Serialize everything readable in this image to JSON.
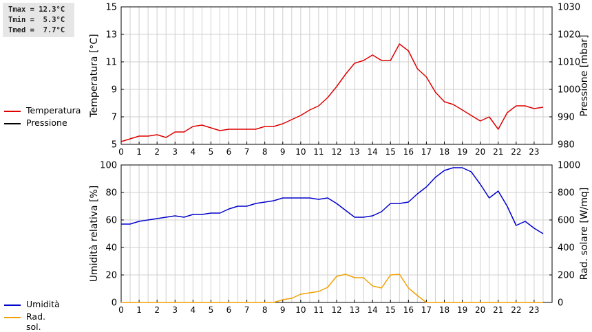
{
  "stats": {
    "lines": [
      "Tmax = 12.3°C",
      "Tmin =  5.3°C",
      "Tmed =  7.7°C"
    ]
  },
  "legend_top": [
    {
      "label": "Temperatura",
      "color": "#dd0000"
    },
    {
      "label": "Pressione",
      "color": "#000000"
    }
  ],
  "legend_bottom": [
    {
      "label": "Umidità",
      "color": "#0000cc"
    },
    {
      "label": "Rad. sol.",
      "color": "#f0a000"
    }
  ],
  "chart_data": [
    {
      "type": "line",
      "x_ticks": [
        0,
        1,
        2,
        3,
        4,
        5,
        6,
        7,
        8,
        9,
        10,
        11,
        12,
        13,
        14,
        15,
        16,
        17,
        18,
        19,
        20,
        21,
        22,
        23
      ],
      "xlim": [
        0,
        24
      ],
      "ylabel": "Temperatura [°C]",
      "y2label": "Pressione [mbar]",
      "ylim": [
        5,
        15
      ],
      "y2lim": [
        980,
        1030
      ],
      "y_ticks": [
        5,
        7,
        9,
        11,
        13,
        15
      ],
      "y2_ticks": [
        980,
        990,
        1000,
        1010,
        1020,
        1030
      ],
      "grid": true,
      "series": [
        {
          "name": "Temperatura",
          "color": "#dd0000",
          "axis": "left",
          "x": [
            0,
            0.5,
            1,
            1.5,
            2,
            2.5,
            3,
            3.5,
            4,
            4.5,
            5,
            5.5,
            6,
            6.5,
            7,
            7.5,
            8,
            8.5,
            9,
            9.5,
            10,
            10.5,
            11,
            11.5,
            12,
            12.5,
            13,
            13.5,
            14,
            14.5,
            15,
            15.5,
            16,
            16.5,
            17,
            17.5,
            18,
            18.5,
            19,
            19.5,
            20,
            20.5,
            21,
            21.5,
            22,
            22.5,
            23,
            23.5
          ],
          "y": [
            5.2,
            5.4,
            5.6,
            5.6,
            5.7,
            5.5,
            5.9,
            5.9,
            6.3,
            6.4,
            6.2,
            6.0,
            6.1,
            6.1,
            6.1,
            6.1,
            6.3,
            6.3,
            6.5,
            6.8,
            7.1,
            7.5,
            7.8,
            8.4,
            9.2,
            10.1,
            10.9,
            11.1,
            11.5,
            11.1,
            11.1,
            12.3,
            11.8,
            10.5,
            9.9,
            8.8,
            8.1,
            7.9,
            7.5,
            7.1,
            6.7,
            7.0,
            6.1,
            7.3,
            7.8,
            7.8,
            7.6,
            7.7
          ]
        },
        {
          "name": "Pressione",
          "color": "#000000",
          "axis": "right",
          "x": [],
          "y": []
        }
      ]
    },
    {
      "type": "line",
      "x_ticks": [
        0,
        1,
        2,
        3,
        4,
        5,
        6,
        7,
        8,
        9,
        10,
        11,
        12,
        13,
        14,
        15,
        16,
        17,
        18,
        19,
        20,
        21,
        22,
        23
      ],
      "xlim": [
        0,
        24
      ],
      "ylabel": "Umidità relativa [%]",
      "y2label": "Rad. solare [W/mq]",
      "ylim": [
        0,
        100
      ],
      "y2lim": [
        0,
        1000
      ],
      "y_ticks": [
        0,
        20,
        40,
        60,
        80,
        100
      ],
      "y2_ticks": [
        0,
        200,
        400,
        600,
        800,
        1000
      ],
      "grid": true,
      "series": [
        {
          "name": "Umidità",
          "color": "#0000cc",
          "axis": "left",
          "x": [
            0,
            0.5,
            1,
            1.5,
            2,
            2.5,
            3,
            3.5,
            4,
            4.5,
            5,
            5.5,
            6,
            6.5,
            7,
            7.5,
            8,
            8.5,
            9,
            9.5,
            10,
            10.5,
            11,
            11.5,
            12,
            12.5,
            13,
            13.5,
            14,
            14.5,
            15,
            15.5,
            16,
            16.5,
            17,
            17.5,
            18,
            18.5,
            19,
            19.5,
            20,
            20.5,
            21,
            21.5,
            22,
            22.5,
            23,
            23.5
          ],
          "y": [
            57,
            57,
            59,
            60,
            61,
            62,
            63,
            62,
            64,
            64,
            65,
            65,
            68,
            70,
            70,
            72,
            73,
            74,
            76,
            76,
            76,
            76,
            75,
            76,
            72,
            67,
            62,
            62,
            63,
            66,
            72,
            72,
            73,
            79,
            84,
            91,
            96,
            98,
            98,
            95,
            86,
            76,
            81,
            70,
            56,
            59,
            54,
            50
          ]
        },
        {
          "name": "Rad. sol.",
          "color": "#f0a000",
          "axis": "right",
          "x": [
            0,
            0.5,
            1,
            1.5,
            2,
            2.5,
            3,
            3.5,
            4,
            4.5,
            5,
            5.5,
            6,
            6.5,
            7,
            7.5,
            8,
            8.5,
            9,
            9.5,
            10,
            10.5,
            11,
            11.5,
            12,
            12.5,
            13,
            13.5,
            14,
            14.5,
            15,
            15.5,
            16,
            16.5,
            17,
            17.5,
            18,
            18.5,
            19,
            19.5,
            20,
            20.5,
            21,
            21.5,
            22,
            22.5,
            23,
            23.5
          ],
          "y": [
            0,
            0,
            0,
            0,
            0,
            0,
            0,
            0,
            0,
            0,
            0,
            0,
            0,
            0,
            0,
            0,
            0,
            0,
            20,
            30,
            60,
            70,
            80,
            110,
            190,
            205,
            180,
            180,
            120,
            105,
            200,
            205,
            105,
            50,
            0,
            0,
            0,
            0,
            0,
            0,
            0,
            0,
            0,
            0,
            0,
            0,
            0,
            0
          ]
        }
      ]
    }
  ]
}
